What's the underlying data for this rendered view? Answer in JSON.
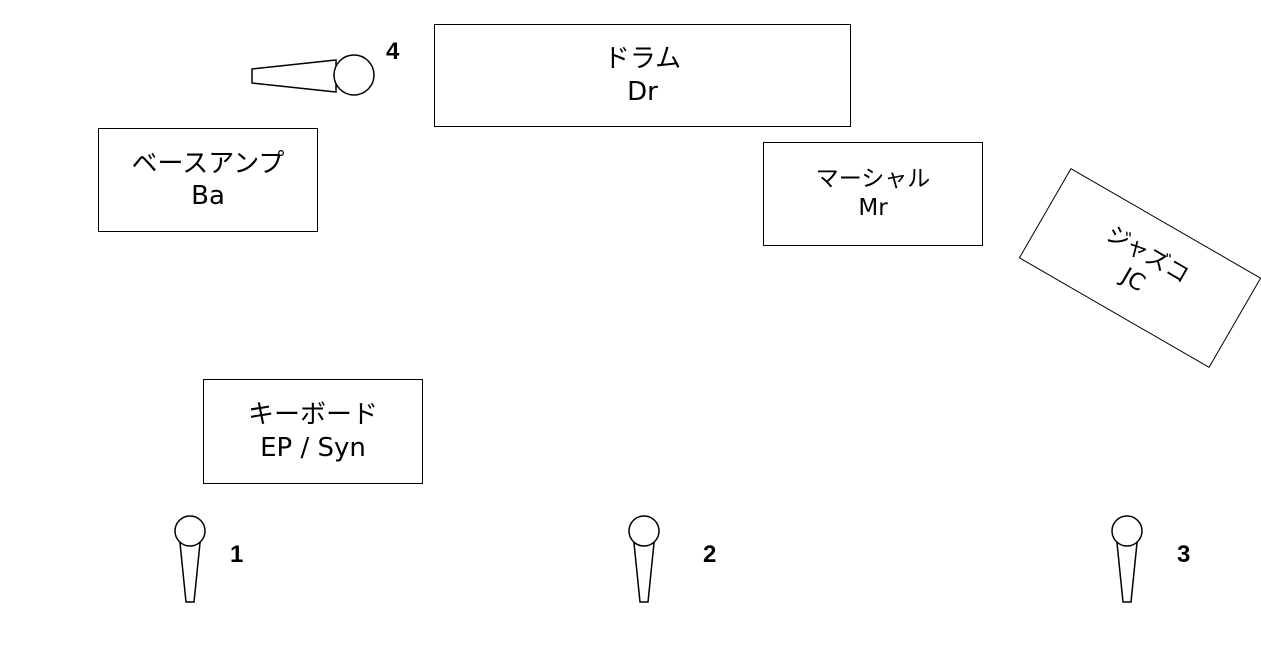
{
  "stage": {
    "drum": {
      "jp": "ドラム",
      "en": "Dr"
    },
    "bass_amp": {
      "jp": "ベースアンプ",
      "en": "Ba"
    },
    "marshall": {
      "jp": "マーシャル",
      "en": "Mr"
    },
    "jazz_chorus": {
      "jp": "ジャズコ",
      "en": "JC"
    },
    "keyboard": {
      "jp": "キーボード",
      "en": "EP / Syn"
    }
  },
  "mics": [
    {
      "number": "1"
    },
    {
      "number": "2"
    },
    {
      "number": "3"
    },
    {
      "number": "4"
    }
  ]
}
